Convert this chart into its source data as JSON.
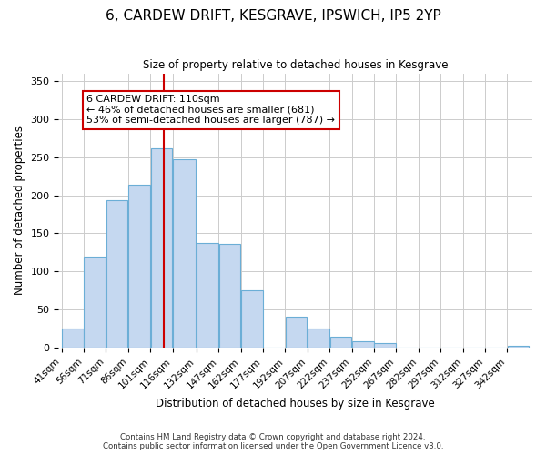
{
  "title": "6, CARDEW DRIFT, KESGRAVE, IPSWICH, IP5 2YP",
  "subtitle": "Size of property relative to detached houses in Kesgrave",
  "xlabel": "Distribution of detached houses by size in Kesgrave",
  "ylabel": "Number of detached properties",
  "bar_color": "#c5d8f0",
  "bar_edge_color": "#6baed6",
  "bin_labels": [
    "41sqm",
    "56sqm",
    "71sqm",
    "86sqm",
    "101sqm",
    "116sqm",
    "132sqm",
    "147sqm",
    "162sqm",
    "177sqm",
    "192sqm",
    "207sqm",
    "222sqm",
    "237sqm",
    "252sqm",
    "267sqm",
    "282sqm",
    "297sqm",
    "312sqm",
    "327sqm",
    "342sqm"
  ],
  "bin_edges": [
    41,
    56,
    71,
    86,
    101,
    116,
    132,
    147,
    162,
    177,
    192,
    207,
    222,
    237,
    252,
    267,
    282,
    297,
    312,
    327,
    342,
    357
  ],
  "bar_heights": [
    25,
    120,
    193,
    214,
    261,
    247,
    137,
    136,
    75,
    0,
    41,
    25,
    15,
    8,
    6,
    0,
    0,
    0,
    0,
    0,
    2
  ],
  "vline_x": 110,
  "vline_color": "#cc0000",
  "annotation_text": "6 CARDEW DRIFT: 110sqm\n← 46% of detached houses are smaller (681)\n53% of semi-detached houses are larger (787) →",
  "annotation_box_color": "#ffffff",
  "annotation_box_edge_color": "#cc0000",
  "ylim": [
    0,
    360
  ],
  "yticks": [
    0,
    50,
    100,
    150,
    200,
    250,
    300,
    350
  ],
  "footer_line1": "Contains HM Land Registry data © Crown copyright and database right 2024.",
  "footer_line2": "Contains public sector information licensed under the Open Government Licence v3.0.",
  "background_color": "#ffffff",
  "grid_color": "#cccccc"
}
